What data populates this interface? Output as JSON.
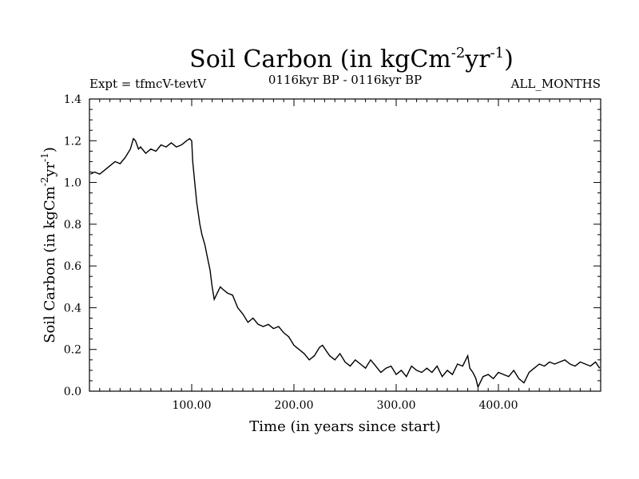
{
  "chart_data": {
    "type": "line",
    "title": "Soil Carbon (in kgCm",
    "title_sup1": "-2",
    "title_mid": "yr",
    "title_sup2": "-1",
    "title_end": ")",
    "subtitle_left": "Expt = tfmcV-tevtV",
    "subtitle_center": "0116kyr BP - 0116kyr BP",
    "subtitle_right": "ALL_MONTHS",
    "xlabel": "Time (in years since start)",
    "ylabel_main": "Soil Carbon (in kgCm",
    "ylabel_sup1": "-2",
    "ylabel_mid": "yr",
    "ylabel_sup2": "-1",
    "ylabel_end": ")",
    "xlim": [
      0,
      500
    ],
    "ylim": [
      0,
      1.4
    ],
    "x_ticks": [
      {
        "value": 100,
        "label": "100.00"
      },
      {
        "value": 200,
        "label": "200.00"
      },
      {
        "value": 300,
        "label": "300.00"
      },
      {
        "value": 400,
        "label": "400.00"
      }
    ],
    "y_ticks": [
      {
        "value": 0.0,
        "label": "0.0"
      },
      {
        "value": 0.2,
        "label": "0.2"
      },
      {
        "value": 0.4,
        "label": "0.4"
      },
      {
        "value": 0.6,
        "label": "0.6"
      },
      {
        "value": 0.8,
        "label": "0.8"
      },
      {
        "value": 1.0,
        "label": "1.0"
      },
      {
        "value": 1.2,
        "label": "1.2"
      },
      {
        "value": 1.4,
        "label": "1.4"
      }
    ],
    "line_color": "#000000",
    "series": [
      {
        "x": [
          1,
          5,
          10,
          15,
          20,
          25,
          30,
          35,
          40,
          43,
          45,
          48,
          50,
          55,
          60,
          65,
          70,
          75,
          80,
          85,
          90,
          95,
          98,
          100,
          101,
          103,
          105,
          108,
          110,
          113,
          115,
          118,
          120,
          122,
          125,
          128,
          130,
          135,
          140,
          145,
          150,
          155,
          160,
          165,
          170,
          175,
          180,
          185,
          190,
          195,
          200,
          205,
          210,
          215,
          220,
          225,
          228,
          232,
          235,
          240,
          245,
          250,
          255,
          260,
          265,
          270,
          275,
          280,
          285,
          290,
          295,
          300,
          305,
          310,
          315,
          320,
          325,
          330,
          335,
          340,
          345,
          350,
          355,
          360,
          365,
          370,
          372,
          375,
          378,
          380,
          385,
          390,
          395,
          400,
          405,
          410,
          415,
          420,
          425,
          430,
          435,
          440,
          445,
          450,
          455,
          460,
          465,
          470,
          475,
          480,
          485,
          490,
          495,
          499
        ],
        "y": [
          1.04,
          1.05,
          1.04,
          1.06,
          1.08,
          1.1,
          1.09,
          1.12,
          1.16,
          1.21,
          1.2,
          1.16,
          1.17,
          1.14,
          1.16,
          1.15,
          1.18,
          1.17,
          1.19,
          1.17,
          1.18,
          1.2,
          1.21,
          1.2,
          1.1,
          1.0,
          0.9,
          0.8,
          0.75,
          0.7,
          0.65,
          0.58,
          0.5,
          0.44,
          0.47,
          0.5,
          0.49,
          0.47,
          0.46,
          0.4,
          0.37,
          0.33,
          0.35,
          0.32,
          0.31,
          0.32,
          0.3,
          0.31,
          0.28,
          0.26,
          0.22,
          0.2,
          0.18,
          0.15,
          0.17,
          0.21,
          0.22,
          0.19,
          0.17,
          0.15,
          0.18,
          0.14,
          0.12,
          0.15,
          0.13,
          0.11,
          0.15,
          0.12,
          0.09,
          0.11,
          0.12,
          0.08,
          0.1,
          0.07,
          0.12,
          0.1,
          0.09,
          0.11,
          0.09,
          0.12,
          0.07,
          0.1,
          0.08,
          0.13,
          0.12,
          0.17,
          0.11,
          0.09,
          0.06,
          0.02,
          0.07,
          0.08,
          0.06,
          0.09,
          0.08,
          0.07,
          0.1,
          0.06,
          0.04,
          0.09,
          0.11,
          0.13,
          0.12,
          0.14,
          0.13,
          0.14,
          0.15,
          0.13,
          0.12,
          0.14,
          0.13,
          0.12,
          0.14,
          0.11
        ]
      }
    ]
  }
}
